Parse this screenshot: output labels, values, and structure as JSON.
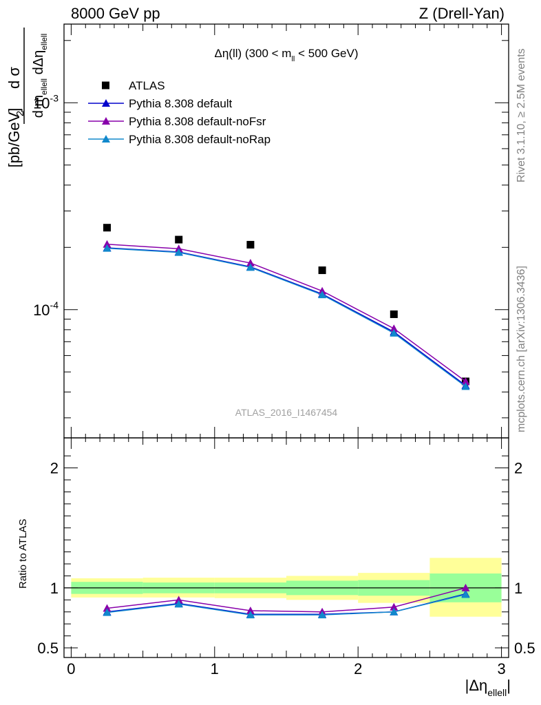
{
  "header": {
    "left": "8000 GeV pp",
    "right": "Z (Drell-Yan)"
  },
  "side_text": {
    "rivet": "Rivet 3.1.10, ≥ 2.5M events",
    "mcplots": "mcplots.cern.ch [arXiv:1306.3436]"
  },
  "chart_data": [
    {
      "type": "scatter",
      "title": "Δη(ll) (300 < m_ll < 500 GeV)",
      "analysis_label": "ATLAS_2016_I1467454",
      "ylabel": "d²σ / d m_ellell dΔη_ellell [pb/GeV]",
      "yscale": "log",
      "ylim": [
        2.4e-05,
        0.0024
      ],
      "xlim": [
        -0.05,
        3.05
      ],
      "y_tick_labels": [
        "10^-4",
        "10^-3"
      ],
      "legend_position": "top-left",
      "x": [
        0.25,
        0.75,
        1.25,
        1.75,
        2.25,
        2.75
      ],
      "series": [
        {
          "name": "ATLAS",
          "color": "#000000",
          "marker": "square",
          "values": [
            0.000249,
            0.000218,
            0.000206,
            0.000155,
            9.5e-05,
            4.5e-05
          ]
        },
        {
          "name": "Pythia 8.308 default",
          "color": "#0000cc",
          "marker": "triangle",
          "values": [
            0.000199,
            0.00019,
            0.000161,
            0.000119,
            7.8e-05,
            4.3e-05
          ]
        },
        {
          "name": "Pythia 8.308 default-noFsr",
          "color": "#8800aa",
          "marker": "triangle",
          "values": [
            0.000207,
            0.000197,
            0.000168,
            0.000123,
            8.1e-05,
            4.5e-05
          ]
        },
        {
          "name": "Pythia 8.308 default-noRap",
          "color": "#1188cc",
          "marker": "triangle",
          "values": [
            0.000198,
            0.000189,
            0.00016,
            0.000118,
            7.7e-05,
            4.25e-05
          ]
        }
      ]
    },
    {
      "type": "line",
      "ylabel": "Ratio to ATLAS",
      "xlabel": "|Δη_ellell|",
      "ylim": [
        0.42,
        2.25
      ],
      "xlim": [
        -0.05,
        3.05
      ],
      "x_ticks": [
        0,
        1,
        2,
        3
      ],
      "y_ticks": [
        0.5,
        1,
        2
      ],
      "x": [
        0.25,
        0.75,
        1.25,
        1.75,
        2.25,
        2.75
      ],
      "bins": [
        [
          0,
          0.5
        ],
        [
          0.5,
          1.0
        ],
        [
          1.0,
          1.5
        ],
        [
          1.5,
          2.0
        ],
        [
          2.0,
          2.5
        ],
        [
          2.5,
          3.0
        ]
      ],
      "band_stat": [
        [
          0.95,
          1.05
        ],
        [
          0.955,
          1.045
        ],
        [
          0.955,
          1.045
        ],
        [
          0.94,
          1.06
        ],
        [
          0.935,
          1.065
        ],
        [
          0.88,
          1.12
        ]
      ],
      "band_total": [
        [
          0.92,
          1.08
        ],
        [
          0.92,
          1.085
        ],
        [
          0.915,
          1.085
        ],
        [
          0.9,
          1.1
        ],
        [
          0.875,
          1.125
        ],
        [
          0.76,
          1.25
        ]
      ],
      "band_colors": {
        "stat": "#99ff99",
        "total": "#ffff99"
      },
      "series": [
        {
          "name": "Pythia 8.308 default",
          "color": "#0000cc",
          "values": [
            0.8,
            0.87,
            0.78,
            0.78,
            0.8,
            0.95
          ]
        },
        {
          "name": "Pythia 8.308 default-noFsr",
          "color": "#8800aa",
          "values": [
            0.83,
            0.9,
            0.81,
            0.8,
            0.84,
            1.0
          ]
        },
        {
          "name": "Pythia 8.308 default-noRap",
          "color": "#1188cc",
          "values": [
            0.795,
            0.865,
            0.775,
            0.775,
            0.8,
            0.945
          ]
        }
      ]
    }
  ]
}
